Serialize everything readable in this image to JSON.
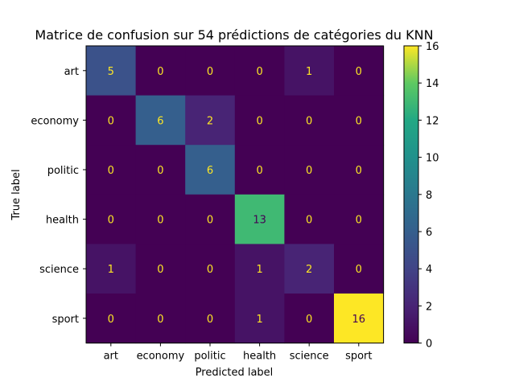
{
  "chart_data": {
    "type": "heatmap",
    "title": "Matrice de confusion sur 54 prédictions de catégories du KNN",
    "xlabel": "Predicted label",
    "ylabel": "True label",
    "x_categories": [
      "art",
      "economy",
      "politic",
      "health",
      "science",
      "sport"
    ],
    "y_categories": [
      "art",
      "economy",
      "politic",
      "health",
      "science",
      "sport"
    ],
    "values": [
      [
        5,
        0,
        0,
        0,
        1,
        0
      ],
      [
        0,
        6,
        2,
        0,
        0,
        0
      ],
      [
        0,
        0,
        6,
        0,
        0,
        0
      ],
      [
        0,
        0,
        0,
        13,
        0,
        0
      ],
      [
        1,
        0,
        0,
        1,
        2,
        0
      ],
      [
        0,
        0,
        0,
        1,
        0,
        16
      ]
    ],
    "colormap": "viridis",
    "colorbar": {
      "min": 0,
      "max": 16,
      "ticks": [
        "0",
        "2",
        "4",
        "6",
        "8",
        "10",
        "12",
        "14",
        "16"
      ]
    },
    "grid": false
  }
}
